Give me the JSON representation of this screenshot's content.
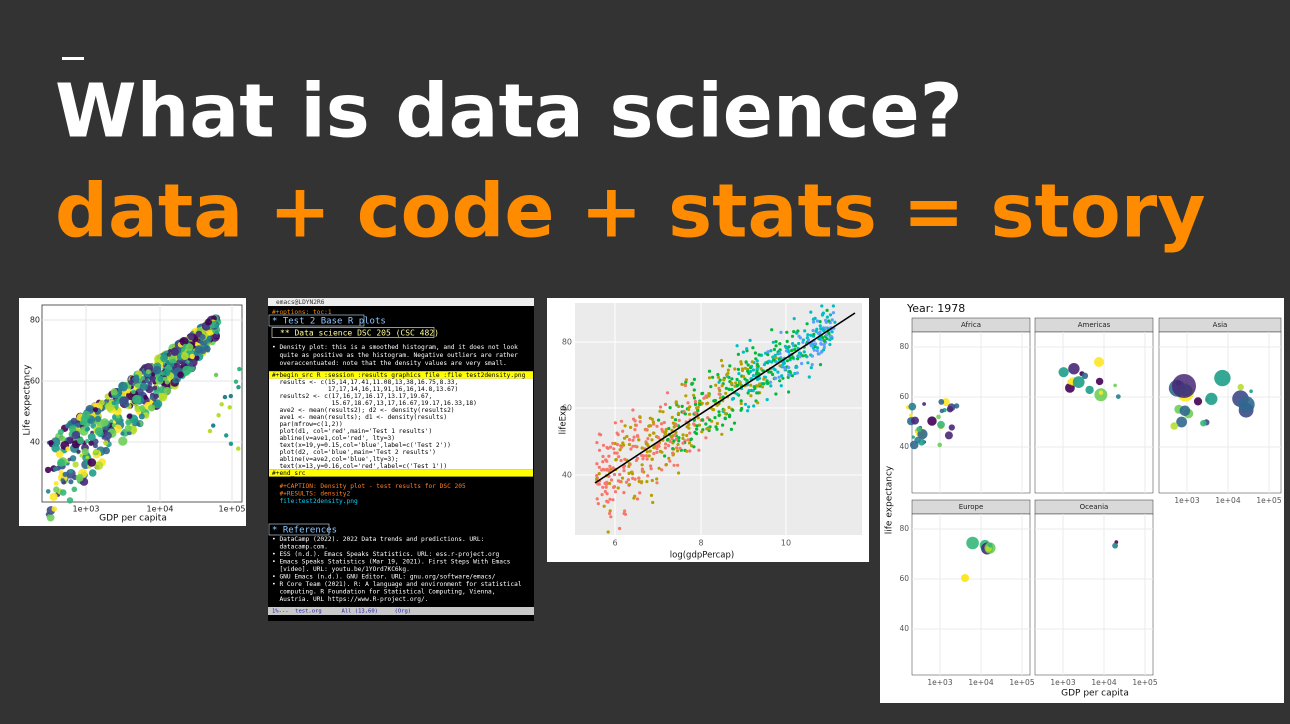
{
  "slide": {
    "title": "What is data science?",
    "subtitle": "data + code + stats = story"
  },
  "figures": [
    {
      "ylabel": "Life expectancy",
      "xlabel": "GDP per capita",
      "yticks": [
        "40",
        "60",
        "80"
      ],
      "xticks": [
        "1e+03",
        "1e+04",
        "1e+05"
      ]
    },
    {
      "window_title": "emacs@LDYN2R6",
      "lines": [
        "#+options: toc:1",
        "* Test 2 Base R plots",
        "** Data science DSC 205 (CSC 482)",
        "• Density plot: this is a smoothed histogram, and it does not look",
        "  quite as positive as the histogram. Negative outliers are rather",
        "  overaccentuated: note that the density values are very small.",
        "#+begin_src R :session :results graphics file :file test2density.png",
        "  results <- c(15,14,17.41,11.08,13,38,16.75,8.33,",
        "               17,17,14,16,11,91,16,16,14.8,13.67)",
        "  results2 <- c(17,16,17,16.17,13.17,19.67,",
        "                15.67,18.67,13,17,16.67,19.17,16.33,18)",
        "  ave2 <- mean(results2); d2 <- density(results2)",
        "  ave1 <- mean(results); d1 <- density(results)",
        "  par(mfrow=c(1,2))",
        "  plot(d1, col='red',main='Test 1 results')",
        "  abline(v=ave1,col='red', lty=3)",
        "  text(x=19,y=0.15,col='blue',label=c('Test 2'))",
        "  plot(d2, col='blue',main='Test 2 results')",
        "  abline(v=ave2,col='blue',lty=3);",
        "  text(x=13,y=0.16,col='red',label=c('Test 1'))",
        "#+end_src",
        "  #+CAPTION: Density plot - test results for DSC 205",
        "  #+RESULTS: density2",
        "  file:test2density.png",
        "* References",
        "• DataCamp (2022). 2022 Data trends and predictions. URL:",
        "  datacamp.com.",
        "• ESS (n.d.). Emacs Speaks Statistics. URL: ess.r-project.org",
        "• Emacs Speaks Statistics (Mar 19, 2021). First Steps With Emacs",
        "  [video]. URL: youtu.be/1YOrd7KC6kg.",
        "• GNU Emacs (n.d.). GNU Editor. URL: gnu.org/software/emacs/",
        "• R Core Team (2021). R: A language and environment for statistical",
        "  computing. R Foundation for Statistical Computing, Vienna,",
        "  Austria. URL https://www.R-project.org/."
      ],
      "modeline": "1%---  test.org      All (13,60)     (Org)"
    },
    {
      "ylabel": "lifeExp",
      "xlabel": "log(gdpPercap)",
      "yticks": [
        "40",
        "60",
        "80"
      ],
      "xticks": [
        "6",
        "8",
        "10"
      ]
    },
    {
      "title": "Year: 1978",
      "facets": [
        "Africa",
        "Americas",
        "Asia",
        "Europe",
        "Oceania"
      ],
      "ylabel": "life expectancy",
      "xlabel": "GDP per capita",
      "yticks": [
        "40",
        "60",
        "80"
      ],
      "xticks": [
        "1e+03",
        "1e+04",
        "1e+05"
      ]
    }
  ]
}
